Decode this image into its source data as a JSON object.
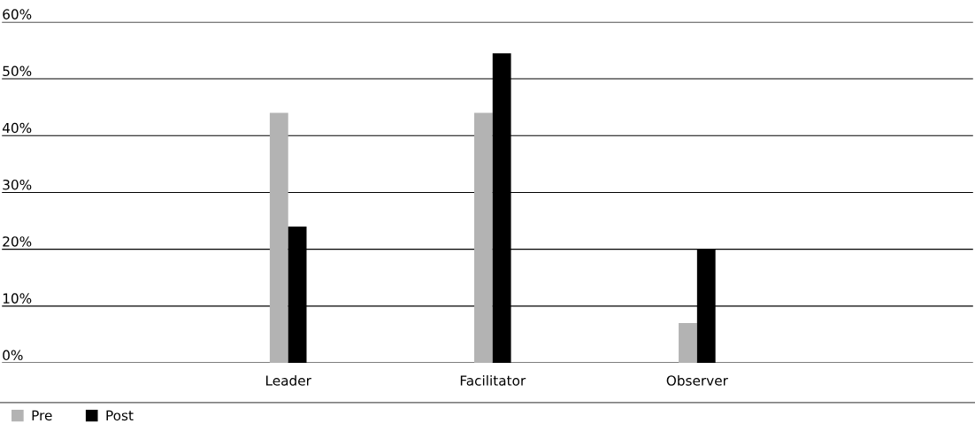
{
  "chart_data": {
    "type": "bar",
    "categories": [
      "Leader",
      "Facilitator",
      "Observer"
    ],
    "series": [
      {
        "name": "Pre",
        "color": "#b3b3b3",
        "values": [
          44,
          44,
          7
        ]
      },
      {
        "name": "Post",
        "color": "#000000",
        "values": [
          24,
          54.5,
          20
        ]
      }
    ],
    "ylim": [
      0,
      60
    ],
    "yticks": [
      {
        "value": 0,
        "label": "0%"
      },
      {
        "value": 10,
        "label": "10%"
      },
      {
        "value": 20,
        "label": "20%"
      },
      {
        "value": 30,
        "label": "30%"
      },
      {
        "value": 40,
        "label": "40%"
      },
      {
        "value": 50,
        "label": "50%"
      },
      {
        "value": 60,
        "label": "60%"
      }
    ],
    "grid": "y",
    "legend": "bottom left"
  }
}
